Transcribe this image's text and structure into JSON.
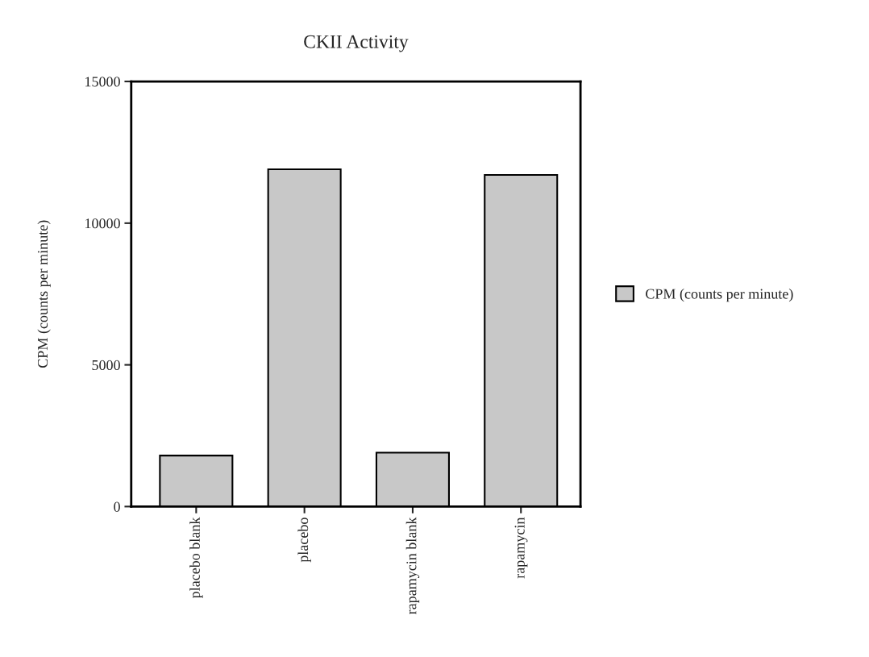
{
  "chart_data": {
    "type": "bar",
    "title": "CKII Activity",
    "ylabel": "CPM (counts per minute)",
    "categories": [
      "placebo blank",
      "placebo",
      "rapamycin blank",
      "rapamycin"
    ],
    "series": [
      {
        "name": "CPM (counts per minute)",
        "color": "#c8c8c8",
        "values": [
          1800,
          11900,
          1900,
          11700
        ]
      }
    ],
    "ylim": [
      0,
      15000
    ],
    "yticks": [
      0,
      5000,
      10000,
      15000
    ],
    "grid": false,
    "legend": "right"
  }
}
